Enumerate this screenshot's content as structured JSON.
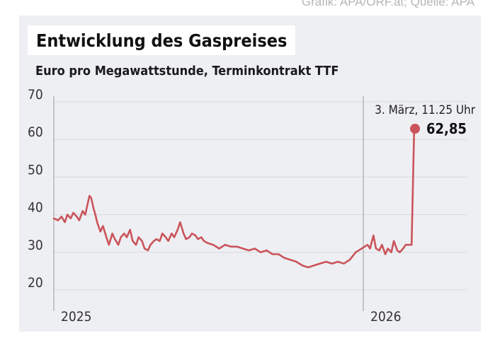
{
  "credit": "Grafik: APA/ORF.at; Quelle: APA",
  "chart_data": {
    "type": "line",
    "title": "Entwicklung des Gaspreises",
    "subtitle": "Euro pro Megawattstunde, Terminkontrakt TTF",
    "xlabel": "",
    "ylabel": "",
    "ylim": [
      20,
      70
    ],
    "yticks": [
      "20",
      "30",
      "40",
      "50",
      "60",
      "70"
    ],
    "xlim": [
      "2025-01-01",
      "2026-03-03"
    ],
    "xticks": [
      {
        "label": "2025",
        "date": "2025-01-01"
      },
      {
        "label": "2026",
        "date": "2026-01-01"
      }
    ],
    "grid": true,
    "line_color": "#c9545a",
    "x": [
      "2025-01-01",
      "2025-01-06",
      "2025-01-10",
      "2025-01-14",
      "2025-01-17",
      "2025-01-21",
      "2025-01-24",
      "2025-01-28",
      "2025-01-31",
      "2025-02-04",
      "2025-02-07",
      "2025-02-10",
      "2025-02-12",
      "2025-02-14",
      "2025-02-17",
      "2025-02-19",
      "2025-02-21",
      "2025-02-25",
      "2025-02-28",
      "2025-03-04",
      "2025-03-07",
      "2025-03-11",
      "2025-03-14",
      "2025-03-18",
      "2025-03-21",
      "2025-03-25",
      "2025-03-28",
      "2025-04-01",
      "2025-04-04",
      "2025-04-08",
      "2025-04-11",
      "2025-04-15",
      "2025-04-18",
      "2025-04-22",
      "2025-04-25",
      "2025-04-29",
      "2025-05-02",
      "2025-05-06",
      "2025-05-09",
      "2025-05-13",
      "2025-05-16",
      "2025-05-20",
      "2025-05-23",
      "2025-05-27",
      "2025-05-30",
      "2025-06-03",
      "2025-06-06",
      "2025-06-10",
      "2025-06-13",
      "2025-06-17",
      "2025-06-20",
      "2025-06-24",
      "2025-06-27",
      "2025-07-01",
      "2025-07-08",
      "2025-07-15",
      "2025-07-22",
      "2025-07-29",
      "2025-08-05",
      "2025-08-12",
      "2025-08-19",
      "2025-08-26",
      "2025-09-02",
      "2025-09-09",
      "2025-09-16",
      "2025-09-23",
      "2025-09-30",
      "2025-10-07",
      "2025-10-14",
      "2025-10-21",
      "2025-10-28",
      "2025-11-04",
      "2025-11-11",
      "2025-11-18",
      "2025-11-25",
      "2025-12-02",
      "2025-12-09",
      "2025-12-16",
      "2025-12-23",
      "2025-12-30",
      "2026-01-06",
      "2026-01-09",
      "2026-01-13",
      "2026-01-16",
      "2026-01-20",
      "2026-01-23",
      "2026-01-27",
      "2026-01-30",
      "2026-02-03",
      "2026-02-06",
      "2026-02-10",
      "2026-02-13",
      "2026-02-17",
      "2026-02-20",
      "2026-02-24",
      "2026-02-27",
      "2026-03-02",
      "2026-03-03"
    ],
    "values": [
      39,
      38.5,
      39.5,
      38,
      40,
      39,
      40.5,
      39.5,
      38.5,
      41,
      40,
      43,
      45,
      44.5,
      41.5,
      40,
      38,
      35.5,
      37,
      34,
      32,
      35,
      33.5,
      32,
      34,
      35,
      34,
      36,
      33,
      32,
      34,
      33,
      31,
      30.5,
      32,
      33,
      33.5,
      33,
      35,
      34,
      33,
      35,
      34,
      36,
      38,
      35,
      33.5,
      34,
      35,
      34.5,
      33.5,
      34,
      33,
      32.5,
      32,
      31,
      32,
      31.5,
      31.5,
      31,
      30.5,
      31,
      30,
      30.5,
      29.5,
      29.5,
      28.5,
      28,
      27.5,
      26.5,
      26,
      26.5,
      27,
      27.5,
      27,
      27.5,
      27,
      28,
      30,
      31,
      32,
      31,
      34.5,
      31,
      30.5,
      32,
      29.5,
      31,
      30,
      33,
      30.5,
      30,
      31,
      32,
      32,
      32,
      62.85,
      62.85
    ]
  },
  "annotation": {
    "date": "2026-03-03",
    "time_label": "3. März, 11.25 Uhr",
    "value_label": "62,85",
    "value": 62.85
  }
}
